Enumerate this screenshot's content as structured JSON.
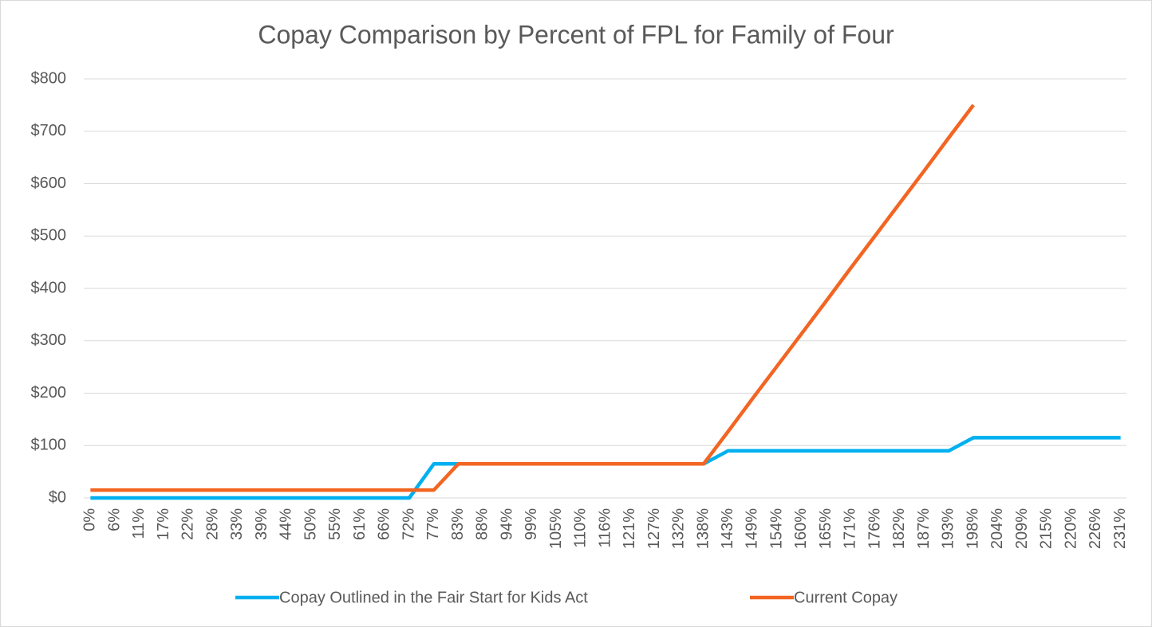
{
  "chart_data": {
    "type": "line",
    "title": "Copay Comparison by Percent of FPL for Family of Four",
    "categories": [
      "0%",
      "6%",
      "11%",
      "17%",
      "22%",
      "28%",
      "33%",
      "39%",
      "44%",
      "50%",
      "55%",
      "61%",
      "66%",
      "72%",
      "77%",
      "83%",
      "88%",
      "94%",
      "99%",
      "105%",
      "110%",
      "116%",
      "121%",
      "127%",
      "132%",
      "138%",
      "143%",
      "149%",
      "154%",
      "160%",
      "165%",
      "171%",
      "176%",
      "182%",
      "187%",
      "193%",
      "198%",
      "204%",
      "209%",
      "215%",
      "220%",
      "226%",
      "231%"
    ],
    "series": [
      {
        "name": "Copay Outlined in the Fair Start for Kids Act",
        "color": "#00b0f0",
        "values": [
          0,
          0,
          0,
          0,
          0,
          0,
          0,
          0,
          0,
          0,
          0,
          0,
          0,
          0,
          65,
          65,
          65,
          65,
          65,
          65,
          65,
          65,
          65,
          65,
          65,
          65,
          90,
          90,
          90,
          90,
          90,
          90,
          90,
          90,
          90,
          90,
          115,
          115,
          115,
          115,
          115,
          115,
          115
        ]
      },
      {
        "name": "Current Copay",
        "color": "#f26522",
        "values": [
          15,
          15,
          15,
          15,
          15,
          15,
          15,
          15,
          15,
          15,
          15,
          15,
          15,
          15,
          15,
          65,
          65,
          65,
          65,
          65,
          65,
          65,
          65,
          65,
          65,
          65,
          127,
          190,
          252,
          314,
          376,
          439,
          501,
          563,
          625,
          688,
          750,
          null,
          null,
          null,
          null,
          null,
          null
        ]
      }
    ],
    "ylim": [
      0,
      800
    ],
    "yticks": [
      {
        "value": 0,
        "label": "$0"
      },
      {
        "value": 100,
        "label": "$100"
      },
      {
        "value": 200,
        "label": "$200"
      },
      {
        "value": 300,
        "label": "$300"
      },
      {
        "value": 400,
        "label": "$400"
      },
      {
        "value": 500,
        "label": "$500"
      },
      {
        "value": 600,
        "label": "$600"
      },
      {
        "value": 700,
        "label": "$700"
      },
      {
        "value": 800,
        "label": "$800"
      }
    ],
    "grid": true,
    "legend": "bottom"
  }
}
